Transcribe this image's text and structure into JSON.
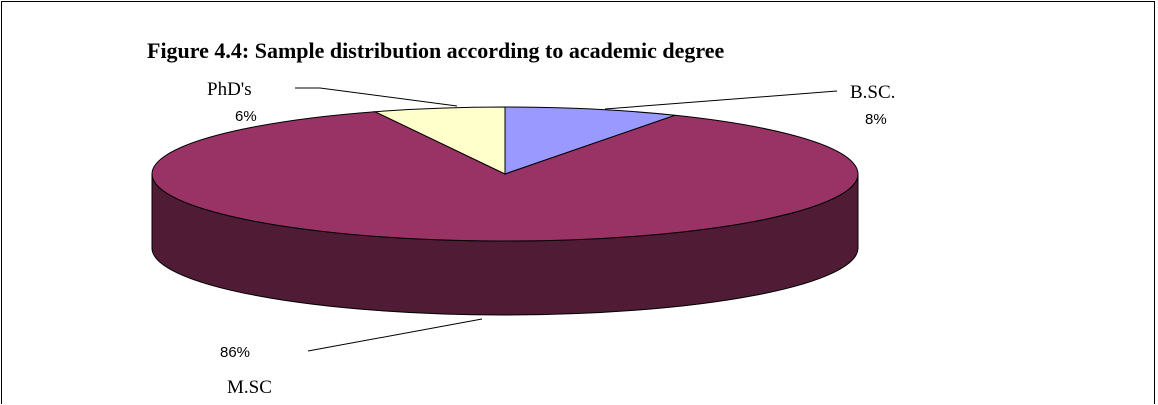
{
  "chart_data": {
    "type": "pie",
    "title": "Figure 4.4: Sample distribution according to academic degree",
    "slices": [
      {
        "label": "B.SC.",
        "value": 8,
        "value_label": "8%",
        "color": "#9999ff"
      },
      {
        "label": "M.SC",
        "value": 86,
        "value_label": "86%",
        "color": "#993366"
      },
      {
        "label": "PhD's",
        "value": 6,
        "value_label": "6%",
        "color": "#ffffcc"
      }
    ],
    "style": "3d",
    "legend": "none"
  }
}
